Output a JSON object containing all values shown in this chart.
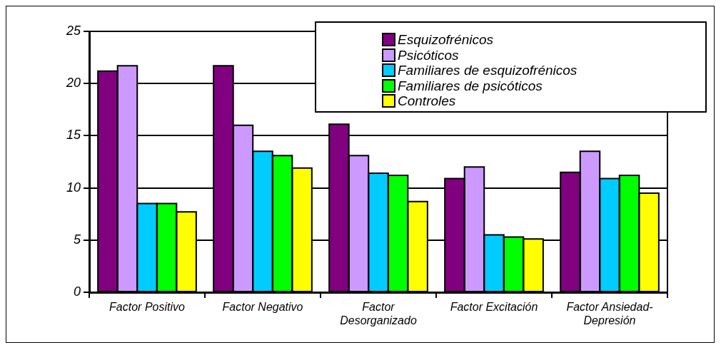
{
  "chart_data": {
    "type": "bar",
    "categories": [
      "Factor Positivo",
      "Factor Negativo",
      "Factor Desorganizado",
      "Factor Excitación",
      "Factor Ansiedad-Depresión"
    ],
    "series": [
      {
        "name": "Esquizofrénicos",
        "color": "#800080",
        "values": [
          21.2,
          21.7,
          16.1,
          10.9,
          11.5
        ]
      },
      {
        "name": "Psicóticos",
        "color": "#cc99ff",
        "values": [
          21.7,
          16.0,
          13.1,
          12.0,
          13.5
        ]
      },
      {
        "name": "Familiares de esquizofrénicos",
        "color": "#00ccff",
        "values": [
          8.5,
          13.5,
          11.4,
          5.5,
          10.9
        ]
      },
      {
        "name": "Familiares de psicóticos",
        "color": "#00ff00",
        "values": [
          8.5,
          13.1,
          11.2,
          5.3,
          11.2
        ]
      },
      {
        "name": "Controles",
        "color": "#ffff00",
        "values": [
          7.7,
          11.9,
          8.7,
          5.1,
          9.5
        ]
      }
    ],
    "ylim": [
      0,
      25
    ],
    "yticks": [
      0,
      5,
      10,
      15,
      20,
      25
    ],
    "grid": "y",
    "legend": "top right"
  }
}
